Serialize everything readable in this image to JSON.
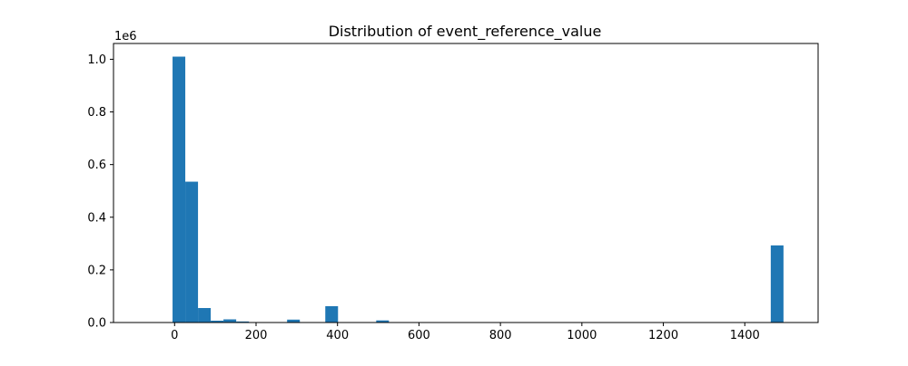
{
  "chart_data": {
    "type": "bar",
    "title": "Distribution of event_reference_value",
    "xlabel": "",
    "ylabel": "",
    "y_offset_text": "1e6",
    "xlim": [
      -150,
      1580
    ],
    "ylim": [
      0,
      1.06
    ],
    "grid": false,
    "bar_color": "#1f77b4",
    "x_ticks": [
      0,
      200,
      400,
      600,
      800,
      1000,
      1200,
      1400
    ],
    "y_ticks": [
      0.0,
      0.2,
      0.4,
      0.6,
      0.8,
      1.0
    ],
    "x_tick_labels": [
      "0",
      "200",
      "400",
      "600",
      "800",
      "1000",
      "1200",
      "1400"
    ],
    "y_tick_labels": [
      "0.0",
      "0.2",
      "0.4",
      "0.6",
      "0.8",
      "1.0"
    ],
    "bin_width": 31.25,
    "bin_edges_start": -5,
    "bins": [
      {
        "x0": -5.0,
        "x1": 26.25,
        "count": 1.01
      },
      {
        "x0": 26.25,
        "x1": 57.5,
        "count": 0.535
      },
      {
        "x0": 57.5,
        "x1": 88.75,
        "count": 0.055
      },
      {
        "x0": 88.75,
        "x1": 120.0,
        "count": 0.007
      },
      {
        "x0": 120.0,
        "x1": 151.25,
        "count": 0.012
      },
      {
        "x0": 151.25,
        "x1": 182.5,
        "count": 0.004
      },
      {
        "x0": 182.5,
        "x1": 213.75,
        "count": 0.001
      },
      {
        "x0": 213.75,
        "x1": 245.0,
        "count": 0.0
      },
      {
        "x0": 245.0,
        "x1": 276.25,
        "count": 0.0
      },
      {
        "x0": 276.25,
        "x1": 307.5,
        "count": 0.011
      },
      {
        "x0": 307.5,
        "x1": 338.75,
        "count": 0.0
      },
      {
        "x0": 338.75,
        "x1": 370.0,
        "count": 0.0
      },
      {
        "x0": 370.0,
        "x1": 401.25,
        "count": 0.062
      },
      {
        "x0": 401.25,
        "x1": 432.5,
        "count": 0.0
      },
      {
        "x0": 432.5,
        "x1": 463.75,
        "count": 0.0
      },
      {
        "x0": 463.75,
        "x1": 495.0,
        "count": 0.0
      },
      {
        "x0": 495.0,
        "x1": 526.25,
        "count": 0.008
      },
      {
        "x0": 1463.75,
        "x1": 1495.0,
        "count": 0.293
      }
    ]
  }
}
